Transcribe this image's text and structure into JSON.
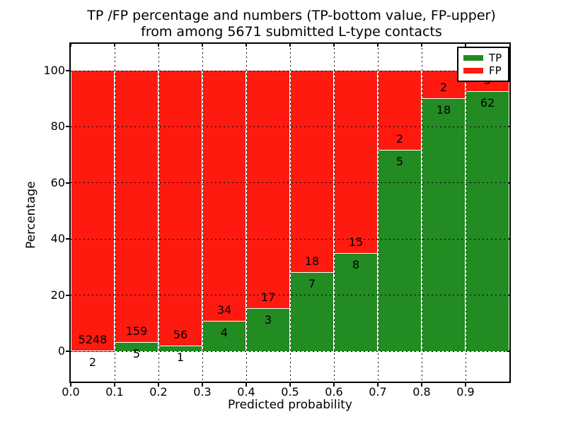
{
  "chart_data": {
    "type": "bar",
    "stacked": true,
    "normalized": "each bin stack sums to 100%",
    "title_line1": "TP /FP percentage and numbers (TP-bottom value, FP-upper)",
    "title_line2": "from among 5671 submitted L-type contacts",
    "title": "TP /FP percentage and numbers (TP-bottom value, FP-upper)\nfrom among 5671 submitted L-type contacts",
    "xlabel": "Predicted probability",
    "ylabel": "Percentage",
    "xlim": [
      0,
      1
    ],
    "ylim": [
      -11,
      110
    ],
    "grid": true,
    "bin_width": 0.1,
    "bin_starts": [
      0.0,
      0.1,
      0.2,
      0.3,
      0.4,
      0.5,
      0.6,
      0.7,
      0.8,
      0.9
    ],
    "x_ticks": [
      0.0,
      0.1,
      0.2,
      0.3,
      0.4,
      0.5,
      0.6,
      0.7,
      0.8,
      0.9
    ],
    "x_tick_labels": [
      "0.0",
      "0.1",
      "0.2",
      "0.3",
      "0.4",
      "0.5",
      "0.6",
      "0.7",
      "0.8",
      "0.9"
    ],
    "y_ticks": [
      0,
      20,
      40,
      60,
      80,
      100
    ],
    "y_tick_labels": [
      "0",
      "20",
      "40",
      "60",
      "80",
      "100"
    ],
    "series": [
      {
        "name": "TP",
        "color": "#228b22",
        "counts": [
          2,
          5,
          1,
          4,
          3,
          7,
          8,
          5,
          18,
          62
        ]
      },
      {
        "name": "FP",
        "color": "#ff1a10",
        "counts": [
          5248,
          159,
          56,
          34,
          17,
          18,
          15,
          2,
          2,
          5
        ]
      }
    ],
    "tp_percent_of_bin": [
      0.04,
      3.05,
      1.75,
      10.53,
      15.0,
      28.0,
      34.78,
      71.43,
      90.0,
      92.54
    ],
    "legend": {
      "position": "upper right",
      "entries": [
        {
          "label": "TP",
          "color": "#228b22"
        },
        {
          "label": "FP",
          "color": "#ff1a10"
        }
      ]
    }
  }
}
